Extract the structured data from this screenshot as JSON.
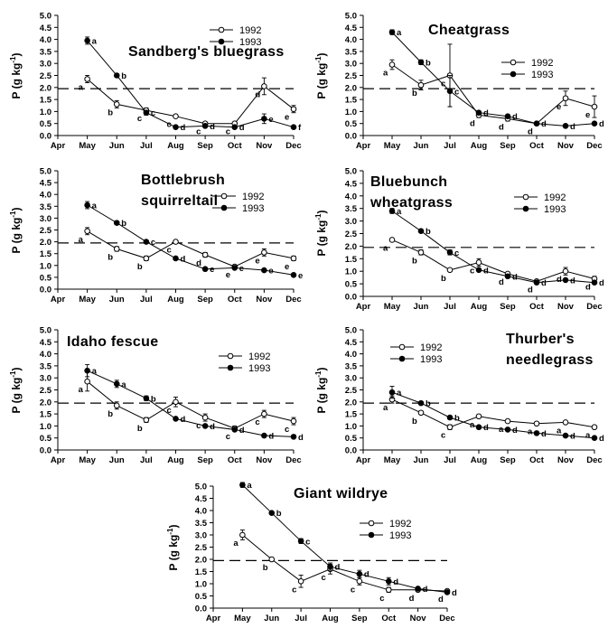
{
  "chart_data": [
    {
      "type": "line",
      "title": "Sandberg's bluegrass",
      "ylabel": "P (g kg-1)",
      "xlabel": "",
      "ylim": [
        0,
        5
      ],
      "yticks": [
        "0.0",
        "0.5",
        "1.0",
        "1.5",
        "2.0",
        "2.5",
        "3.0",
        "3.5",
        "4.0",
        "4.5",
        "5.0"
      ],
      "x_ticks": [
        "Apr",
        "May",
        "Jun",
        "Jul",
        "Aug",
        "Sep",
        "Oct",
        "Nov",
        "Dec"
      ],
      "reference_line": 1.95,
      "grid": false,
      "legend_position": "top-right",
      "series": [
        {
          "name": "1992",
          "marker": "open",
          "x": [
            "May",
            "Jun",
            "Jul",
            "Aug",
            "Sep",
            "Oct",
            "Nov",
            "Dec"
          ],
          "values": [
            2.35,
            1.3,
            1.05,
            0.8,
            0.5,
            0.5,
            2.05,
            1.1
          ],
          "errors": [
            0.15,
            0.15,
            0.1,
            0.05,
            0.05,
            0.05,
            0.35,
            0.15
          ],
          "letters": [
            "a",
            "b",
            "c",
            "c",
            "c",
            "c",
            "d",
            "e"
          ]
        },
        {
          "name": "1993",
          "marker": "filled",
          "x": [
            "May",
            "Jun",
            "Jul",
            "Aug",
            "Sep",
            "Oct",
            "Nov",
            "Dec"
          ],
          "values": [
            3.95,
            2.5,
            0.95,
            0.35,
            0.4,
            0.35,
            0.7,
            0.35
          ],
          "errors": [
            0.15,
            0.05,
            0.1,
            0.05,
            0.05,
            0.05,
            0.2,
            0.05
          ],
          "letters": [
            "a",
            "b",
            "c",
            "d",
            "d",
            "d",
            "e",
            "f"
          ]
        }
      ]
    },
    {
      "type": "line",
      "title": "Cheatgrass",
      "ylabel": "P (g kg-1)",
      "xlabel": "",
      "ylim": [
        0,
        5
      ],
      "yticks": [
        "0.0",
        "0.5",
        "1.0",
        "1.5",
        "2.0",
        "2.5",
        "3.0",
        "3.5",
        "4.0",
        "4.5",
        "5.0"
      ],
      "x_ticks": [
        "Apr",
        "May",
        "Jun",
        "Jul",
        "Aug",
        "Sep",
        "Oct",
        "Nov",
        "Dec"
      ],
      "reference_line": 1.95,
      "grid": false,
      "legend_position": "top-right",
      "series": [
        {
          "name": "1992",
          "marker": "open",
          "x": [
            "May",
            "Jun",
            "Jul",
            "Aug",
            "Sep",
            "Oct",
            "Nov",
            "Dec"
          ],
          "values": [
            2.95,
            2.1,
            2.5,
            0.85,
            0.7,
            0.5,
            1.55,
            1.2
          ],
          "errors": [
            0.2,
            0.2,
            1.3,
            0.1,
            0.1,
            0.05,
            0.3,
            0.45
          ],
          "letters": [
            "a",
            "b",
            "c",
            "d",
            "d",
            "d",
            "e",
            "e"
          ]
        },
        {
          "name": "1993",
          "marker": "filled",
          "x": [
            "May",
            "Jun",
            "Jul",
            "Aug",
            "Sep",
            "Oct",
            "Nov",
            "Dec"
          ],
          "values": [
            4.3,
            3.05,
            1.85,
            0.95,
            0.8,
            0.5,
            0.4,
            0.5
          ],
          "errors": [
            0.1,
            0.1,
            0.65,
            0.05,
            0.05,
            0.05,
            0.05,
            0.05
          ],
          "letters": [
            "a",
            "b",
            "c",
            "d",
            "d",
            "d",
            "d",
            "d"
          ]
        }
      ]
    },
    {
      "type": "line",
      "title": "Bottlebrush squirreltail",
      "title_lines": [
        "Bottlebrush",
        "squirreltail"
      ],
      "ylabel": "P (g kg-1)",
      "xlabel": "",
      "ylim": [
        0,
        5
      ],
      "yticks": [
        "0.0",
        "0.5",
        "1.0",
        "1.5",
        "2.0",
        "2.5",
        "3.0",
        "3.5",
        "4.0",
        "4.5",
        "5.0"
      ],
      "x_ticks": [
        "Apr",
        "May",
        "Jun",
        "Jul",
        "Aug",
        "Sep",
        "Oct",
        "Nov",
        "Dec"
      ],
      "reference_line": 1.95,
      "grid": false,
      "legend_position": "top-right",
      "series": [
        {
          "name": "1992",
          "marker": "open",
          "x": [
            "May",
            "Jun",
            "Jul",
            "Aug",
            "Sep",
            "Oct",
            "Nov",
            "Dec"
          ],
          "values": [
            2.45,
            1.7,
            1.3,
            2.0,
            1.45,
            0.95,
            1.55,
            1.3
          ],
          "errors": [
            0.15,
            0.1,
            0.1,
            0.05,
            0.1,
            0.05,
            0.15,
            0.1
          ],
          "letters": [
            "a",
            "b",
            "b",
            "c",
            "d",
            "e",
            "e",
            "e"
          ]
        },
        {
          "name": "1993",
          "marker": "filled",
          "x": [
            "May",
            "Jun",
            "Jul",
            "Aug",
            "Sep",
            "Oct",
            "Nov",
            "Dec"
          ],
          "values": [
            3.55,
            2.8,
            2.0,
            1.3,
            0.85,
            0.9,
            0.8,
            0.6
          ],
          "errors": [
            0.15,
            0.05,
            0.05,
            0.05,
            0.05,
            0.05,
            0.05,
            0.05
          ],
          "letters": [
            "a",
            "b",
            "c",
            "d",
            "e",
            "e",
            "e",
            "e"
          ]
        }
      ]
    },
    {
      "type": "line",
      "title": "Bluebunch wheatgrass",
      "title_lines": [
        "Bluebunch",
        "wheatgrass"
      ],
      "ylabel": "P (g kg-1)",
      "xlabel": "",
      "ylim": [
        0,
        5
      ],
      "yticks": [
        "0.0",
        "0.5",
        "1.0",
        "1.5",
        "2.0",
        "2.5",
        "3.0",
        "3.5",
        "4.0",
        "4.5",
        "5.0"
      ],
      "x_ticks": [
        "Apr",
        "May",
        "Jun",
        "Jul",
        "Aug",
        "Sep",
        "Oct",
        "Nov",
        "Dec"
      ],
      "reference_line": 1.95,
      "grid": false,
      "legend_position": "top-right",
      "series": [
        {
          "name": "1992",
          "marker": "open",
          "x": [
            "May",
            "Jun",
            "Jul",
            "Aug",
            "Sep",
            "Oct",
            "Nov",
            "Dec"
          ],
          "values": [
            2.25,
            1.75,
            1.05,
            1.35,
            0.9,
            0.6,
            1.0,
            0.7
          ],
          "errors": [
            0.05,
            0.1,
            0.05,
            0.15,
            0.05,
            0.05,
            0.15,
            0.1
          ],
          "letters": [
            "a",
            "b",
            "b",
            "c",
            "d",
            "d",
            "d",
            "d"
          ]
        },
        {
          "name": "1993",
          "marker": "filled",
          "x": [
            "May",
            "Jun",
            "Jul",
            "Aug",
            "Sep",
            "Oct",
            "Nov",
            "Dec"
          ],
          "values": [
            3.4,
            2.6,
            1.75,
            1.05,
            0.8,
            0.55,
            0.65,
            0.55
          ],
          "errors": [
            0.1,
            0.05,
            0.1,
            0.05,
            0.05,
            0.05,
            0.05,
            0.05
          ],
          "letters": [
            "a",
            "b",
            "c",
            "d",
            "d",
            "d",
            "d",
            "d"
          ]
        }
      ]
    },
    {
      "type": "line",
      "title": "Idaho fescue",
      "ylabel": "P (g kg-1)",
      "xlabel": "",
      "ylim": [
        0,
        5
      ],
      "yticks": [
        "0.0",
        "0.5",
        "1.0",
        "1.5",
        "2.0",
        "2.5",
        "3.0",
        "3.5",
        "4.0",
        "4.5",
        "5.0"
      ],
      "x_ticks": [
        "Apr",
        "May",
        "Jun",
        "Jul",
        "Aug",
        "Sep",
        "Oct",
        "Nov",
        "Dec"
      ],
      "reference_line": 1.95,
      "grid": false,
      "legend_position": "top-right",
      "series": [
        {
          "name": "1992",
          "marker": "open",
          "x": [
            "May",
            "Jun",
            "Jul",
            "Aug",
            "Sep",
            "Oct",
            "Nov",
            "Dec"
          ],
          "values": [
            2.85,
            1.85,
            1.25,
            2.0,
            1.35,
            0.9,
            1.5,
            1.2
          ],
          "errors": [
            0.4,
            0.15,
            0.1,
            0.2,
            0.15,
            0.1,
            0.15,
            0.15
          ],
          "letters": [
            "a",
            "b",
            "b",
            "c",
            "c",
            "c",
            "c",
            "c"
          ]
        },
        {
          "name": "1993",
          "marker": "filled",
          "x": [
            "May",
            "Jun",
            "Jul",
            "Aug",
            "Sep",
            "Oct",
            "Nov",
            "Dec"
          ],
          "values": [
            3.3,
            2.75,
            2.15,
            1.3,
            1.0,
            0.85,
            0.6,
            0.55
          ],
          "errors": [
            0.25,
            0.15,
            0.1,
            0.05,
            0.05,
            0.05,
            0.05,
            0.05
          ],
          "letters": [
            "a",
            "a",
            "b",
            "d",
            "d",
            "d",
            "d",
            "d"
          ]
        }
      ]
    },
    {
      "type": "line",
      "title": "Thurber's needlegrass",
      "title_lines": [
        "Thurber's",
        "needlegrass"
      ],
      "ylabel": "P (g kg-1)",
      "xlabel": "",
      "ylim": [
        0,
        5
      ],
      "yticks": [
        "0.0",
        "0.5",
        "1.0",
        "1.5",
        "2.0",
        "2.5",
        "3.0",
        "3.5",
        "4.0",
        "4.5",
        "5.0"
      ],
      "x_ticks": [
        "Apr",
        "May",
        "Jun",
        "Jul",
        "Aug",
        "Sep",
        "Oct",
        "Nov",
        "Dec"
      ],
      "reference_line": 1.95,
      "grid": false,
      "legend_position": "top-left",
      "series": [
        {
          "name": "1992",
          "marker": "open",
          "x": [
            "May",
            "Jun",
            "Jul",
            "Aug",
            "Sep",
            "Oct",
            "Nov",
            "Dec"
          ],
          "values": [
            2.1,
            1.55,
            0.95,
            1.4,
            1.2,
            1.1,
            1.15,
            0.95
          ],
          "errors": [
            0.15,
            0.05,
            0.1,
            0.05,
            0.05,
            0.05,
            0.05,
            0.05
          ],
          "letters": [
            "a",
            "b",
            "c",
            "a",
            "a",
            "a",
            "a",
            "a"
          ]
        },
        {
          "name": "1993",
          "marker": "filled",
          "x": [
            "May",
            "Jun",
            "Jul",
            "Aug",
            "Sep",
            "Oct",
            "Nov",
            "Dec"
          ],
          "values": [
            2.4,
            1.95,
            1.35,
            0.95,
            0.85,
            0.7,
            0.6,
            0.5
          ],
          "errors": [
            0.25,
            0.05,
            0.05,
            0.05,
            0.05,
            0.05,
            0.05,
            0.05
          ],
          "letters": [
            "a",
            "b",
            "b",
            "d",
            "d",
            "d",
            "d",
            "d"
          ]
        }
      ]
    },
    {
      "type": "line",
      "title": "Giant wildrye",
      "ylabel": "P (g kg-1)",
      "xlabel": "",
      "ylim": [
        0,
        5
      ],
      "yticks": [
        "0.0",
        "0.5",
        "1.0",
        "1.5",
        "2.0",
        "2.5",
        "3.0",
        "3.5",
        "4.0",
        "4.5",
        "5.0"
      ],
      "x_ticks": [
        "Apr",
        "May",
        "Jun",
        "Jul",
        "Aug",
        "Sep",
        "Oct",
        "Nov",
        "Dec"
      ],
      "reference_line": 1.95,
      "grid": false,
      "legend_position": "top-right",
      "series": [
        {
          "name": "1992",
          "marker": "open",
          "x": [
            "May",
            "Jun",
            "Jul",
            "Aug",
            "Sep",
            "Oct",
            "Nov",
            "Dec"
          ],
          "values": [
            3.0,
            2.0,
            1.1,
            1.6,
            1.1,
            0.75,
            0.75,
            0.7
          ],
          "errors": [
            0.2,
            0.05,
            0.25,
            0.2,
            0.15,
            0.1,
            0.05,
            0.05
          ],
          "letters": [
            "a",
            "b",
            "c",
            "c",
            "c",
            "c",
            "d",
            "d"
          ]
        },
        {
          "name": "1993",
          "marker": "filled",
          "x": [
            "May",
            "Jun",
            "Jul",
            "Aug",
            "Sep",
            "Oct",
            "Nov",
            "Dec"
          ],
          "values": [
            5.05,
            3.9,
            2.75,
            1.7,
            1.4,
            1.1,
            0.8,
            0.65
          ],
          "errors": [
            0.1,
            0.05,
            0.1,
            0.15,
            0.15,
            0.15,
            0.05,
            0.05
          ],
          "letters": [
            "a",
            "b",
            "c",
            "d",
            "d",
            "d",
            "d",
            "d"
          ]
        }
      ]
    }
  ]
}
